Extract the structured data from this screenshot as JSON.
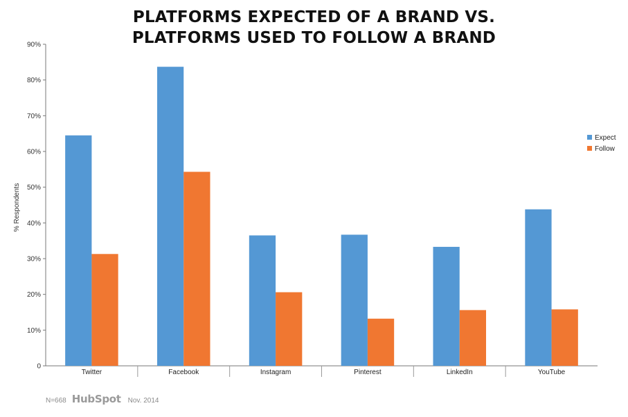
{
  "chart_data": {
    "type": "bar",
    "title_lines": [
      "PLATFORMS EXPECTED OF A BRAND VS.",
      "PLATFORMS USED TO FOLLOW A BRAND"
    ],
    "ylabel": "% Respondents",
    "xlabel": "",
    "ylim": [
      0,
      90
    ],
    "yticks": [
      0,
      10,
      20,
      30,
      40,
      50,
      60,
      70,
      80,
      90
    ],
    "ytick_labels": [
      "0",
      "10%",
      "20%",
      "30%",
      "40%",
      "50%",
      "60%",
      "70%",
      "80%",
      "90%"
    ],
    "categories": [
      "Twitter",
      "Facebook",
      "Instagram",
      "Pinterest",
      "LinkedIn",
      "YouTube"
    ],
    "series": [
      {
        "name": "Expect",
        "color": "#5498d4",
        "values": [
          64.5,
          83.7,
          36.5,
          36.7,
          33.3,
          43.8
        ]
      },
      {
        "name": "Follow",
        "color": "#f07731",
        "values": [
          31.3,
          54.3,
          20.6,
          13.2,
          15.6,
          15.8
        ]
      }
    ],
    "legend_position": "right",
    "grid": false
  },
  "footer": {
    "sample": "N=668",
    "brand": "HubSpot",
    "date": "Nov. 2014"
  }
}
